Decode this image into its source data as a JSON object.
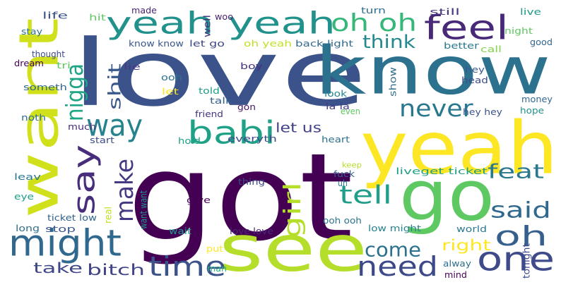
{
  "words": [
    {
      "text": "love",
      "color": "#3b528b"
    },
    {
      "text": "know",
      "color": "#2c728e"
    },
    {
      "text": "got",
      "color": "#440154"
    },
    {
      "text": "yeah",
      "color": "#fde725"
    },
    {
      "text": "see",
      "color": "#b5de2b"
    },
    {
      "text": "want",
      "color": "#d0e11c"
    },
    {
      "text": "go",
      "color": "#5ec962"
    },
    {
      "text": "yeah yeah",
      "color": "#21918c"
    },
    {
      "text": "feel",
      "color": "#482878"
    },
    {
      "text": "babi",
      "color": "#1fa187"
    },
    {
      "text": "oh oh",
      "color": "#35b779"
    },
    {
      "text": "might",
      "color": "#31688e"
    },
    {
      "text": "one",
      "color": "#3e4a89"
    },
    {
      "text": "need",
      "color": "#3e4989"
    },
    {
      "text": "time",
      "color": "#3b528b"
    },
    {
      "text": "oh",
      "color": "#355f8d"
    },
    {
      "text": "say",
      "color": "#472d7b"
    },
    {
      "text": "never",
      "color": "#2a788e"
    },
    {
      "text": "way",
      "color": "#26828e"
    },
    {
      "text": "tell",
      "color": "#1f9e89"
    },
    {
      "text": "feat",
      "color": "#2a788e"
    },
    {
      "text": "said",
      "color": "#31688e"
    },
    {
      "text": "make",
      "color": "#443a83"
    },
    {
      "text": "girl",
      "color": "#b5de2b"
    },
    {
      "text": "nigga",
      "color": "#20a486"
    },
    {
      "text": "think",
      "color": "#23898e"
    },
    {
      "text": "come",
      "color": "#2c728e"
    },
    {
      "text": "right",
      "color": "#fde725"
    },
    {
      "text": "let us",
      "color": "#424086"
    },
    {
      "text": "take",
      "color": "#3f4788"
    },
    {
      "text": "bitch",
      "color": "#414487"
    },
    {
      "text": "shit",
      "color": "#38588c"
    },
    {
      "text": "life",
      "color": "#3b528b"
    },
    {
      "text": "hit",
      "color": "#5ec962"
    },
    {
      "text": "made",
      "color": "#482576"
    },
    {
      "text": "woo",
      "color": "#481f70"
    },
    {
      "text": "well",
      "color": "#46327e"
    },
    {
      "text": "turn",
      "color": "#2e6e8e"
    },
    {
      "text": "still",
      "color": "#453781"
    },
    {
      "text": "live",
      "color": "#1f9a8a"
    },
    {
      "text": "stay",
      "color": "#2d708e"
    },
    {
      "text": "know know",
      "color": "#39568c"
    },
    {
      "text": "let go",
      "color": "#3f4889"
    },
    {
      "text": "oh yeah",
      "color": "#c2df23"
    },
    {
      "text": "back light",
      "color": "#31688e"
    },
    {
      "text": "better",
      "color": "#2a788e"
    },
    {
      "text": "night",
      "color": "#5ec962"
    },
    {
      "text": "good",
      "color": "#32658e"
    },
    {
      "text": "thought",
      "color": "#3e4a89"
    },
    {
      "text": "call",
      "color": "#84d44b"
    },
    {
      "text": "dream",
      "color": "#440154"
    },
    {
      "text": "tri",
      "color": "#5ec962"
    },
    {
      "text": "lie",
      "color": "#443983"
    },
    {
      "text": "boy",
      "color": "#46327e"
    },
    {
      "text": "show",
      "color": "#2e6e8e"
    },
    {
      "text": "hey",
      "color": "#38598c"
    },
    {
      "text": "head",
      "color": "#3e4a89"
    },
    {
      "text": "ooh",
      "color": "#2c728e"
    },
    {
      "text": "someth",
      "color": "#31688e"
    },
    {
      "text": "let",
      "color": "#fde725"
    },
    {
      "text": "told",
      "color": "#1f9e89"
    },
    {
      "text": "talk",
      "color": "#34618d"
    },
    {
      "text": "look",
      "color": "#23888e"
    },
    {
      "text": "friend",
      "color": "#46337f"
    },
    {
      "text": "gon",
      "color": "#481769"
    },
    {
      "text": "la la",
      "color": "#433e85"
    },
    {
      "text": "money",
      "color": "#31688e"
    },
    {
      "text": "noth",
      "color": "#2e6e8e"
    },
    {
      "text": "even",
      "color": "#5ec962"
    },
    {
      "text": "hey hey",
      "color": "#3b528b"
    },
    {
      "text": "hope",
      "color": "#21918c"
    },
    {
      "text": "much",
      "color": "#472c7a"
    },
    {
      "text": "start",
      "color": "#3d4d8a"
    },
    {
      "text": "hold",
      "color": "#1fa187"
    },
    {
      "text": "everyth",
      "color": "#3e4989"
    },
    {
      "text": "heart",
      "color": "#2c728e"
    },
    {
      "text": "leav",
      "color": "#2a788e"
    },
    {
      "text": "keep",
      "color": "#b5de2b"
    },
    {
      "text": "fuck",
      "color": "#34608d"
    },
    {
      "text": "uh",
      "color": "#287c8e"
    },
    {
      "text": "liveget ticket",
      "color": "#1f9e89"
    },
    {
      "text": "thing",
      "color": "#3e4a89"
    },
    {
      "text": "eye",
      "color": "#1fa088"
    },
    {
      "text": "give",
      "color": "#440154"
    },
    {
      "text": "want want",
      "color": "#1f968b"
    },
    {
      "text": "real",
      "color": "#c2df23"
    },
    {
      "text": "ticket low",
      "color": "#33638d"
    },
    {
      "text": "long",
      "color": "#2e6e8e"
    },
    {
      "text": "stop",
      "color": "#38598c"
    },
    {
      "text": "ooh ooh",
      "color": "#2b758e"
    },
    {
      "text": "low might",
      "color": "#26828e"
    },
    {
      "text": "world",
      "color": "#2a788e"
    },
    {
      "text": "wait",
      "color": "#1f9e89"
    },
    {
      "text": "love love",
      "color": "#482878"
    },
    {
      "text": "put",
      "color": "#fde725"
    },
    {
      "text": "man",
      "color": "#29af7f"
    },
    {
      "text": "alway",
      "color": "#2e6e8e"
    },
    {
      "text": "mind",
      "color": "#440154"
    },
    {
      "text": "tonight",
      "color": "#3e4a89"
    }
  ]
}
